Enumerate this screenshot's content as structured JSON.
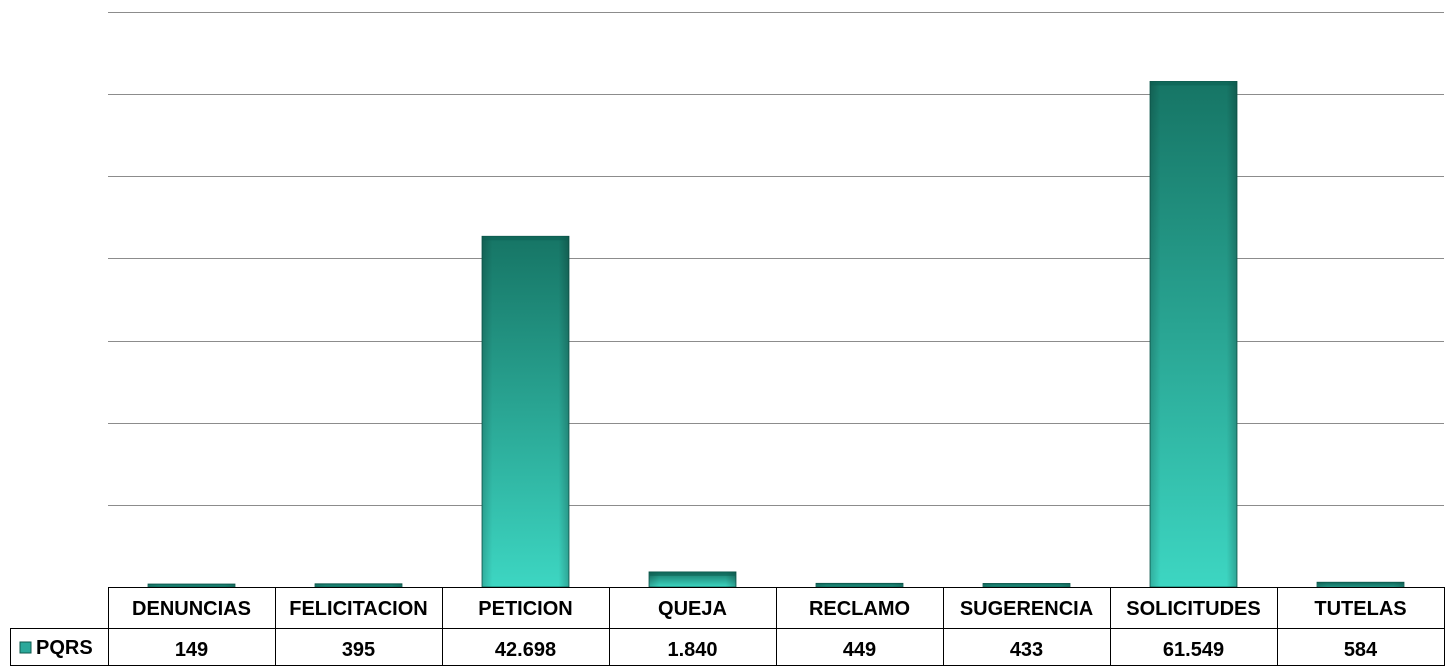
{
  "chart_data": {
    "type": "bar",
    "categories": [
      "DENUNCIAS",
      "FELICITACION",
      "PETICION",
      "QUEJA",
      "RECLAMO",
      "SUGERENCIA",
      "SOLICITUDES",
      "TUTELAS"
    ],
    "series": [
      {
        "name": "PQRS",
        "values": [
          149,
          395,
          42698,
          1840,
          449,
          433,
          61549,
          584
        ]
      }
    ],
    "value_labels": [
      "149",
      "395",
      "42.698",
      "1.840",
      "449",
      "433",
      "61.549",
      "584"
    ],
    "ylim": [
      0,
      70000
    ],
    "grid": true,
    "data_table": true,
    "colors": {
      "bar_top": "#167565",
      "bar_bottom": "#3dd6c2",
      "grid": "#8c8c8c",
      "legend_key": "#2aa89a"
    }
  }
}
